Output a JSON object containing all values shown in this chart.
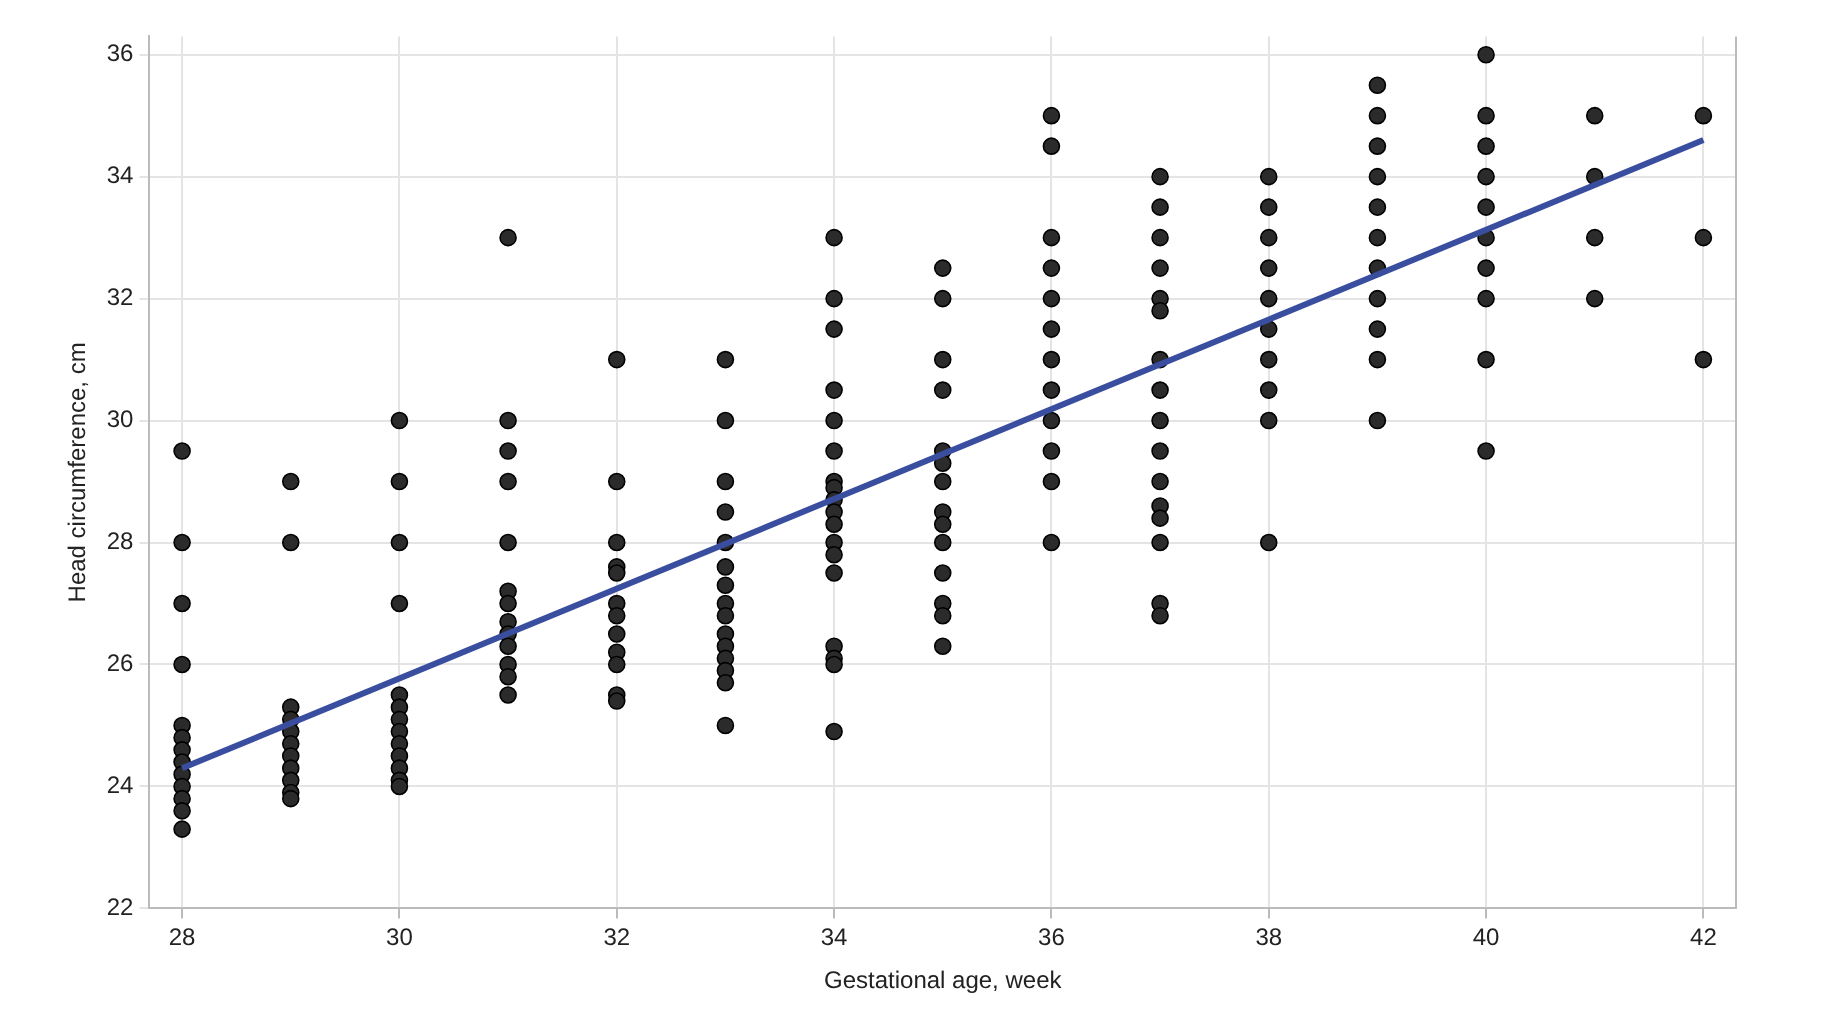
{
  "chart_data": {
    "type": "scatter",
    "xlabel": "Gestational age, week",
    "ylabel": "Head circumference, cm",
    "xlim": [
      27.7,
      42.3
    ],
    "ylim": [
      22,
      36.3
    ],
    "xticks": [
      28,
      30,
      32,
      34,
      36,
      38,
      40,
      42
    ],
    "yticks": [
      22,
      24,
      26,
      28,
      30,
      32,
      34,
      36
    ],
    "grid": true,
    "series": [
      {
        "marker": "circle",
        "color": "#2b2b2b",
        "x": [
          28,
          28,
          28,
          28,
          28,
          28,
          28,
          28,
          28,
          28,
          28,
          28,
          28,
          29,
          29,
          29,
          29,
          29,
          29,
          29,
          29,
          29,
          29,
          29,
          30,
          30,
          30,
          30,
          30,
          30,
          30,
          30,
          30,
          30,
          30,
          30,
          30,
          31,
          31,
          31,
          31,
          31,
          31,
          31,
          31,
          31,
          31,
          31,
          31,
          31,
          32,
          32,
          32,
          32,
          32,
          32,
          32,
          32,
          32,
          32,
          32,
          32,
          33,
          33,
          33,
          33,
          33,
          33,
          33,
          33,
          33,
          33,
          33,
          33,
          33,
          33,
          33,
          34,
          34,
          34,
          34,
          34,
          34,
          34,
          34,
          34,
          34,
          34,
          34,
          34,
          34,
          34,
          34,
          34,
          34,
          35,
          35,
          35,
          35,
          35,
          35,
          35,
          35,
          35,
          35,
          35,
          35,
          35,
          35,
          36,
          36,
          36,
          36,
          36,
          36,
          36,
          36,
          36,
          36,
          36,
          36,
          37,
          37,
          37,
          37,
          37,
          37,
          37,
          37,
          37,
          37,
          37,
          37,
          37,
          37,
          37,
          37,
          38,
          38,
          38,
          38,
          38,
          38,
          38,
          38,
          38,
          38,
          39,
          39,
          39,
          39,
          39,
          39,
          39,
          39,
          39,
          39,
          39,
          40,
          40,
          40,
          40,
          40,
          40,
          40,
          40,
          40,
          40,
          41,
          41,
          41,
          41,
          42,
          42,
          42
        ],
        "values": [
          29.5,
          28,
          27,
          26,
          25,
          24.8,
          24.6,
          24.4,
          24.2,
          24,
          23.8,
          23.6,
          23.3,
          29,
          28,
          25.3,
          25.1,
          24.9,
          24.7,
          24.5,
          24.3,
          24.1,
          23.9,
          23.8,
          30,
          29,
          28,
          27,
          25.5,
          25.3,
          25.1,
          24.9,
          24.7,
          24.5,
          24.3,
          24.1,
          24,
          33,
          30,
          29.5,
          29,
          28,
          27.2,
          27,
          26.7,
          26.5,
          26.3,
          26,
          25.8,
          25.5,
          31,
          29,
          28,
          27.6,
          27.5,
          27,
          26.8,
          26.5,
          26.2,
          26,
          25.5,
          25.4,
          31,
          30,
          29,
          28.5,
          28,
          27.6,
          27.3,
          27,
          26.8,
          26.5,
          26.3,
          26.1,
          25.9,
          25.7,
          25,
          33,
          32,
          31.5,
          30.5,
          30,
          29.5,
          29,
          28.9,
          28.7,
          28.5,
          28.3,
          28,
          27.8,
          27.5,
          26.3,
          26.1,
          26,
          24.9,
          32.5,
          32,
          31,
          30.5,
          29.5,
          29.3,
          29,
          28.5,
          28.3,
          28,
          27.5,
          27,
          26.8,
          26.3,
          35,
          34.5,
          33,
          32.5,
          32,
          31.5,
          31,
          30.5,
          30,
          29.5,
          29,
          28,
          34,
          33.5,
          33,
          32.5,
          32,
          31.8,
          31,
          30.5,
          30,
          29.5,
          29,
          28.6,
          28.4,
          28,
          27,
          26.8,
          34,
          33.5,
          33,
          32.5,
          32,
          31.5,
          31,
          30.5,
          30,
          28,
          35.5,
          35,
          34.5,
          34,
          33.5,
          33,
          32.5,
          32,
          31.5,
          31,
          30,
          36,
          35,
          34.5,
          34,
          33.5,
          33,
          32.5,
          32,
          31,
          29.5,
          35,
          34,
          33,
          32,
          35,
          33,
          31
        ]
      },
      {
        "type": "line",
        "color": "#3a4ea0",
        "x": [
          28,
          42
        ],
        "values": [
          24.3,
          34.6
        ]
      }
    ]
  }
}
